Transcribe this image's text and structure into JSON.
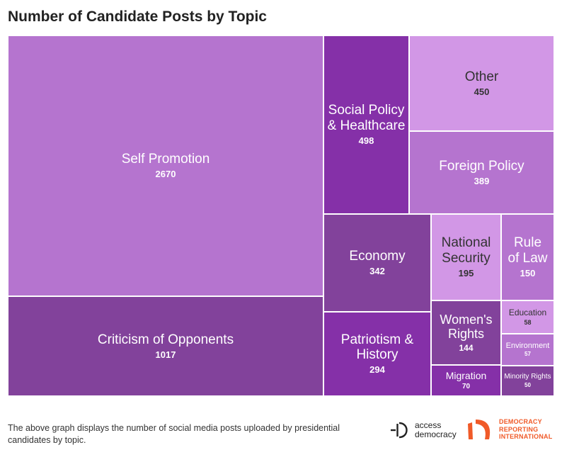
{
  "page": {
    "title": "Number of Candidate Posts by Topic",
    "footnote": "The above graph displays the number of social media posts uploaded by presidential candidates by topic."
  },
  "logos": {
    "access_democracy": {
      "line1": "access",
      "line2": "democracy"
    },
    "dri": {
      "line1": "DEMOCRACY",
      "line2": "REPORTING",
      "line3": "INTERNATIONAL",
      "color": "#f05a28"
    }
  },
  "chart_data": {
    "type": "treemap",
    "title": "Number of Candidate Posts by Topic",
    "items": [
      {
        "label": "Self Promotion",
        "value": 2670,
        "color": "#b574cf"
      },
      {
        "label": "Criticism of Opponents",
        "value": 1017,
        "color": "#82429b"
      },
      {
        "label": "Social Policy & Healthcare",
        "value": 498,
        "color": "#8530a8"
      },
      {
        "label": "Other",
        "value": 450,
        "color": "#d297e6"
      },
      {
        "label": "Foreign Policy",
        "value": 389,
        "color": "#b574cf"
      },
      {
        "label": "Economy",
        "value": 342,
        "color": "#82429b"
      },
      {
        "label": "Patriotism & History",
        "value": 294,
        "color": "#8530a8"
      },
      {
        "label": "National Security",
        "value": 195,
        "color": "#d297e6"
      },
      {
        "label": "Rule of Law",
        "value": 150,
        "color": "#b574cf"
      },
      {
        "label": "Women's Rights",
        "value": 144,
        "color": "#82429b"
      },
      {
        "label": "Migration",
        "value": 70,
        "color": "#8530a8"
      },
      {
        "label": "Education",
        "value": 58,
        "color": "#d297e6"
      },
      {
        "label": "Environment",
        "value": 57,
        "color": "#b574cf"
      },
      {
        "label": "Minority Rights",
        "value": 50,
        "color": "#82429b"
      }
    ]
  }
}
